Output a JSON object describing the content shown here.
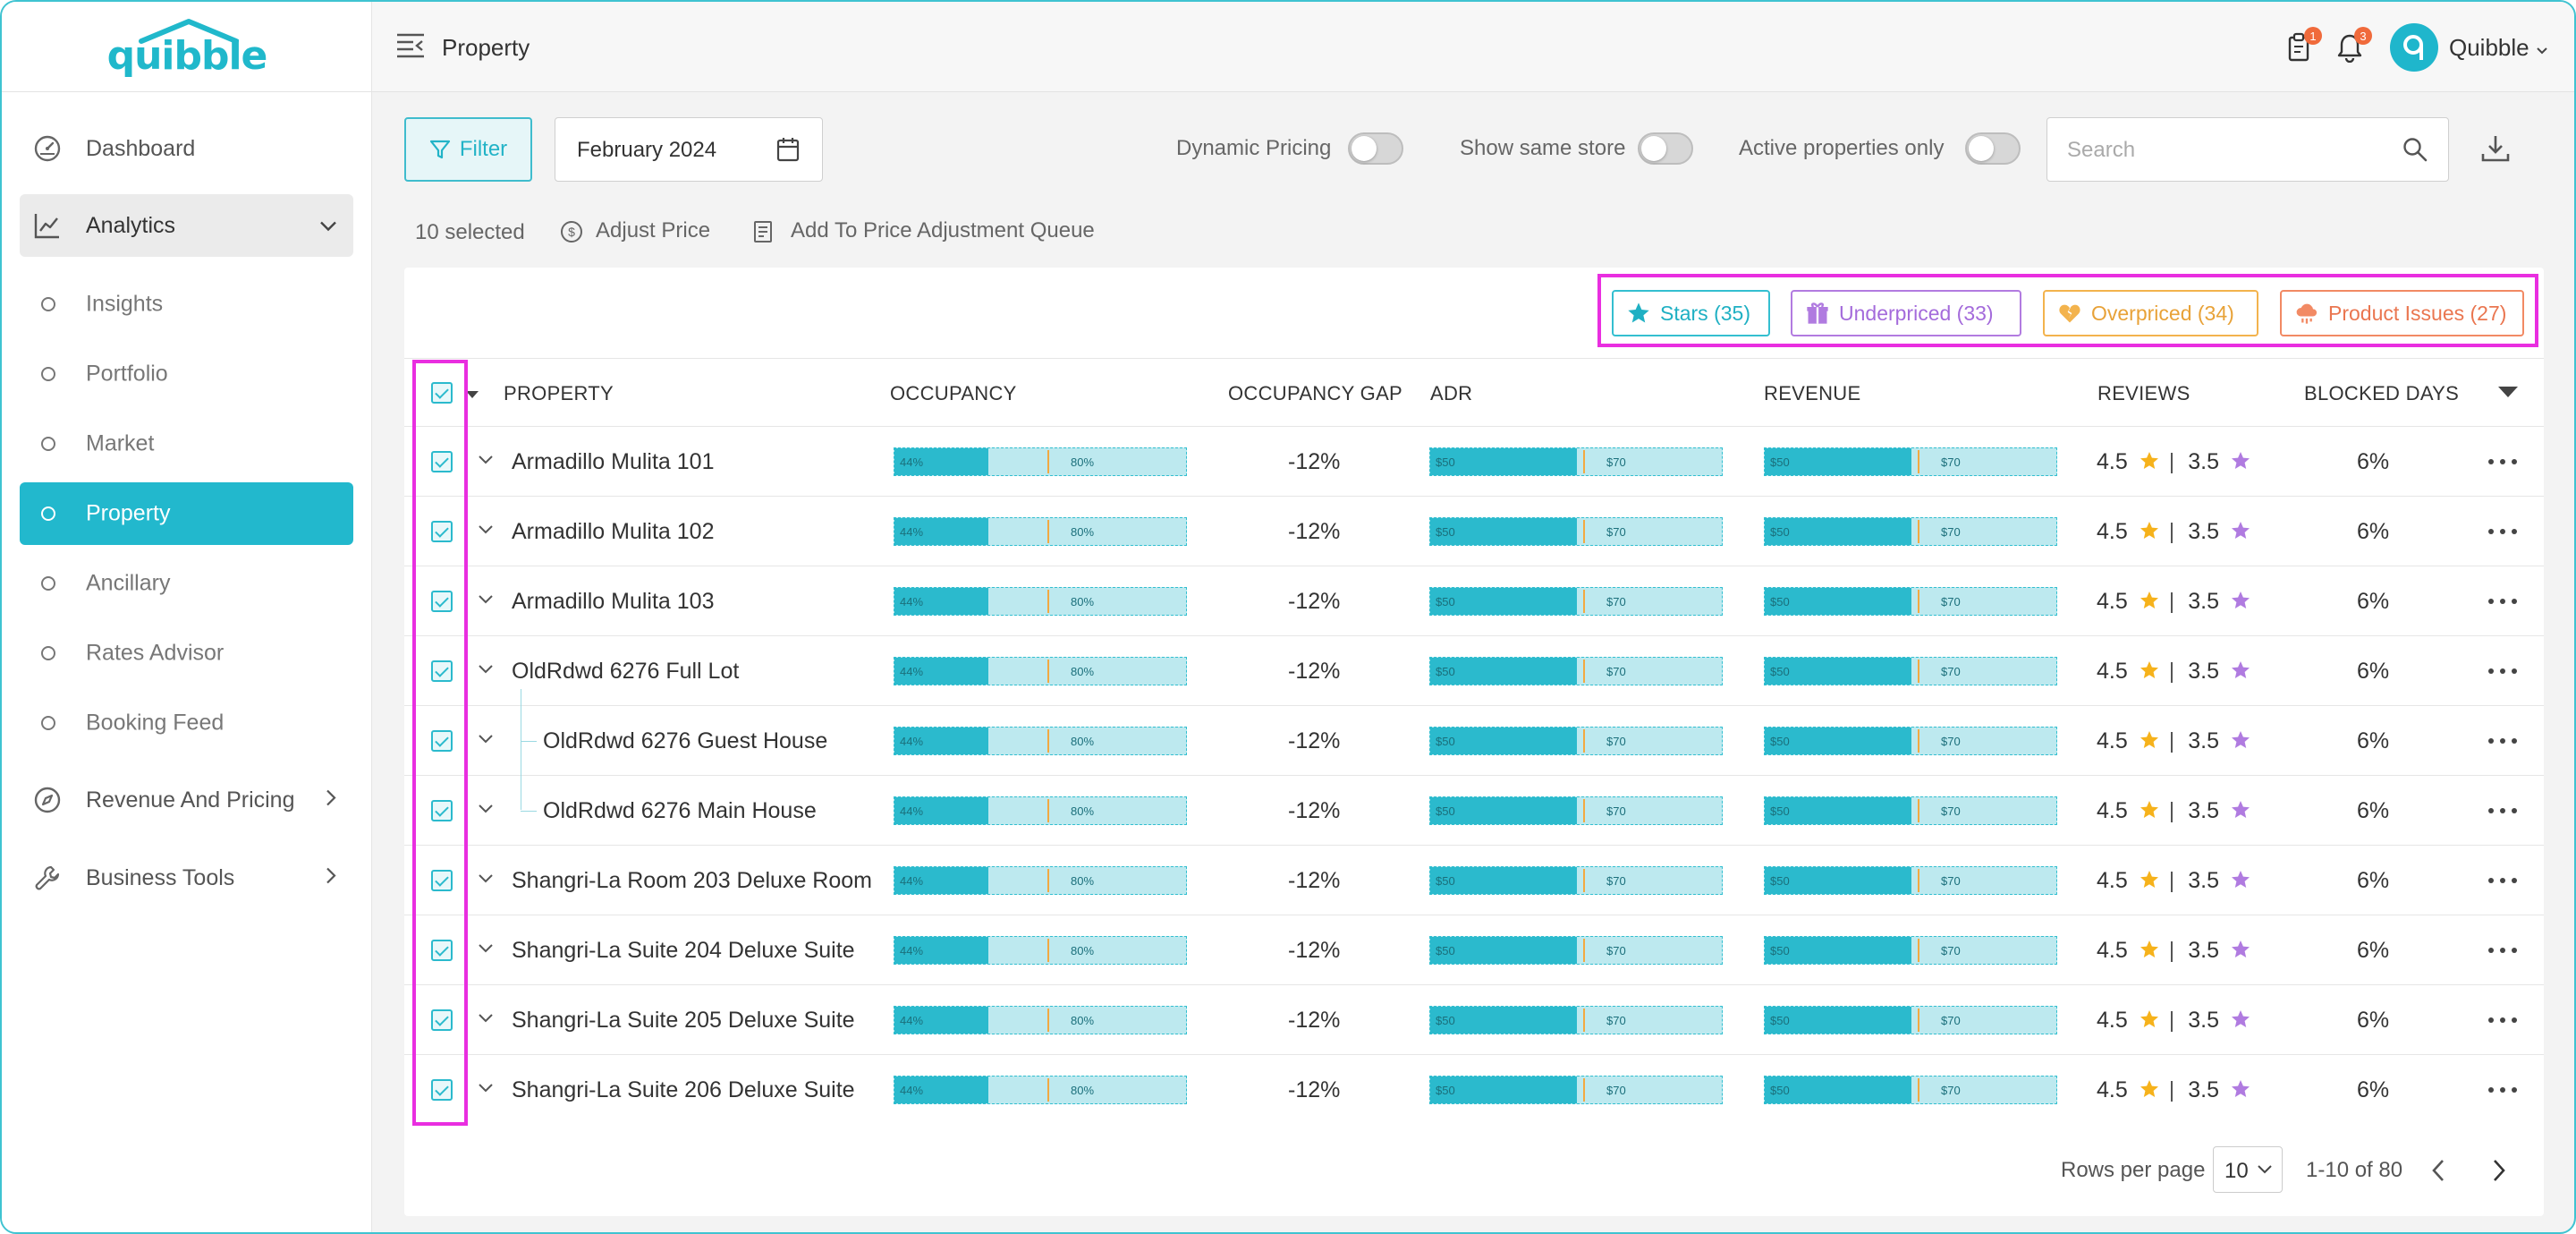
{
  "app": {
    "logo_text": "quibble"
  },
  "header": {
    "title": "Property",
    "user_name": "Quibble",
    "badge_tasks": "1",
    "badge_notifications": "3"
  },
  "sidebar": {
    "items": [
      {
        "label": "Dashboard"
      },
      {
        "label": "Analytics"
      },
      {
        "label": "Insights"
      },
      {
        "label": "Portfolio"
      },
      {
        "label": "Market"
      },
      {
        "label": "Property"
      },
      {
        "label": "Ancillary"
      },
      {
        "label": "Rates Advisor"
      },
      {
        "label": "Booking Feed"
      },
      {
        "label": "Revenue And Pricing"
      },
      {
        "label": "Business Tools"
      }
    ],
    "active": "Property"
  },
  "toolbar": {
    "filter_label": "Filter",
    "date_value": "February 2024",
    "dynamic_pricing_label": "Dynamic Pricing",
    "same_store_label": "Show same store",
    "active_only_label": "Active properties only",
    "toggles": {
      "dynamic_pricing": false,
      "same_store": false,
      "active_only": false
    },
    "search_placeholder": "Search"
  },
  "actions": {
    "selected_count": "10 selected",
    "adjust_price": "Adjust Price",
    "add_queue": "Add To Price Adjustment Queue"
  },
  "tags": {
    "stars": "Stars (35)",
    "underpriced": "Underpriced (33)",
    "overpriced": "Overpriced (34)",
    "product_issues": "Product Issues (27)"
  },
  "colors": {
    "accent": "#22b8cd",
    "highlight": "#e92ee0",
    "marker": "#f2a941",
    "stars": "#f6b21b",
    "purple": "#b07be0"
  },
  "table": {
    "columns": [
      "PROPERTY",
      "OCCUPANCY",
      "OCCUPANCY GAP",
      "ADR",
      "REVENUE",
      "REVIEWS",
      "BLOCKED DAYS"
    ],
    "rows": [
      {
        "name": "Armadillo Mulita 101",
        "occ_low": "44%",
        "occ_high": "80%",
        "occ_fill": 0.32,
        "gap": "-12%",
        "adr_low": "$50",
        "adr_high": "$70",
        "rev_low": "$50",
        "rev_high": "$70",
        "rating1": "4.5",
        "rating2": "3.5",
        "blocked": "6%"
      },
      {
        "name": "Armadillo Mulita 102",
        "occ_low": "44%",
        "occ_high": "80%",
        "occ_fill": 0.32,
        "gap": "-12%",
        "adr_low": "$50",
        "adr_high": "$70",
        "rev_low": "$50",
        "rev_high": "$70",
        "rating1": "4.5",
        "rating2": "3.5",
        "blocked": "6%"
      },
      {
        "name": "Armadillo Mulita 103",
        "occ_low": "44%",
        "occ_high": "80%",
        "occ_fill": 0.32,
        "gap": "-12%",
        "adr_low": "$50",
        "adr_high": "$70",
        "rev_low": "$50",
        "rev_high": "$70",
        "rating1": "4.5",
        "rating2": "3.5",
        "blocked": "6%"
      },
      {
        "name": "OldRdwd 6276 Full Lot",
        "occ_low": "44%",
        "occ_high": "80%",
        "occ_fill": 0.32,
        "gap": "-12%",
        "adr_low": "$50",
        "adr_high": "$70",
        "rev_low": "$50",
        "rev_high": "$70",
        "rating1": "4.5",
        "rating2": "3.5",
        "blocked": "6%"
      },
      {
        "name": "OldRdwd 6276 Guest House",
        "child": true,
        "occ_low": "44%",
        "occ_high": "80%",
        "occ_fill": 0.32,
        "gap": "-12%",
        "adr_low": "$50",
        "adr_high": "$70",
        "rev_low": "$50",
        "rev_high": "$70",
        "rating1": "4.5",
        "rating2": "3.5",
        "blocked": "6%"
      },
      {
        "name": "OldRdwd 6276 Main House",
        "child": true,
        "occ_low": "44%",
        "occ_high": "80%",
        "occ_fill": 0.32,
        "gap": "-12%",
        "adr_low": "$50",
        "adr_high": "$70",
        "rev_low": "$50",
        "rev_high": "$70",
        "rating1": "4.5",
        "rating2": "3.5",
        "blocked": "6%"
      },
      {
        "name": "Shangri-La Room  203 Deluxe Room",
        "occ_low": "44%",
        "occ_high": "80%",
        "occ_fill": 0.32,
        "gap": "-12%",
        "adr_low": "$50",
        "adr_high": "$70",
        "rev_low": "$50",
        "rev_high": "$70",
        "rating1": "4.5",
        "rating2": "3.5",
        "blocked": "6%"
      },
      {
        "name": "Shangri-La Suite  204 Deluxe Suite",
        "occ_low": "44%",
        "occ_high": "80%",
        "occ_fill": 0.32,
        "gap": "-12%",
        "adr_low": "$50",
        "adr_high": "$70",
        "rev_low": "$50",
        "rev_high": "$70",
        "rating1": "4.5",
        "rating2": "3.5",
        "blocked": "6%"
      },
      {
        "name": "Shangri-La Suite  205 Deluxe Suite",
        "occ_low": "44%",
        "occ_high": "80%",
        "occ_fill": 0.32,
        "gap": "-12%",
        "adr_low": "$50",
        "adr_high": "$70",
        "rev_low": "$50",
        "rev_high": "$70",
        "rating1": "4.5",
        "rating2": "3.5",
        "blocked": "6%"
      },
      {
        "name": "Shangri-La Suite  206 Deluxe Suite",
        "occ_low": "44%",
        "occ_high": "80%",
        "occ_fill": 0.32,
        "gap": "-12%",
        "adr_low": "$50",
        "adr_high": "$70",
        "rev_low": "$50",
        "rev_high": "$70",
        "rating1": "4.5",
        "rating2": "3.5",
        "blocked": "6%"
      }
    ]
  },
  "pagination": {
    "rows_per_page_label": "Rows per page",
    "rows_per_page_value": "10",
    "range": "1-10 of 80"
  }
}
